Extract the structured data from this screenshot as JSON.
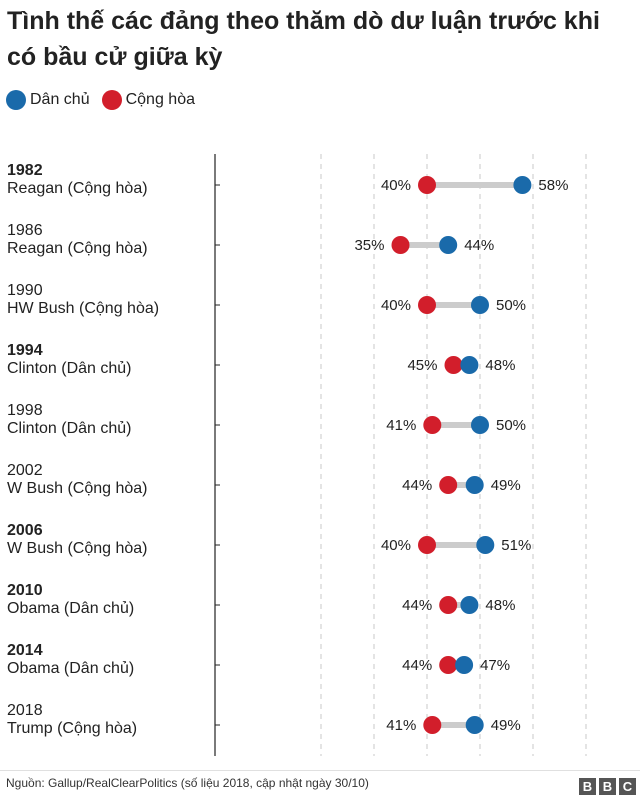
{
  "title": "Tình thế các đảng theo thăm dò dư luận trước khi có bầu cử giữa kỳ",
  "legend": [
    {
      "label": "Dân chủ",
      "color": "#1a6aaa"
    },
    {
      "label": "Cộng hòa",
      "color": "#d21e2b"
    }
  ],
  "colors": {
    "dem": "#1a6aaa",
    "rep": "#d21e2b",
    "connector": "#cccccc",
    "grid": "#c8c8c8",
    "axis": "#222222"
  },
  "chart_data": {
    "type": "dot",
    "xlim": [
      0,
      100
    ],
    "grid": true,
    "legend_position": "top-left",
    "rows": [
      {
        "year": "1982",
        "president": "Reagan (Cộng hòa)",
        "bold": true,
        "rep": 40,
        "dem": 58,
        "rep_label": "40%",
        "dem_label": "58%"
      },
      {
        "year": "1986",
        "president": "Reagan (Cộng hòa)",
        "bold": false,
        "rep": 35,
        "dem": 44,
        "rep_label": "35%",
        "dem_label": "44%"
      },
      {
        "year": "1990",
        "president": "HW Bush (Cộng hòa)",
        "bold": false,
        "rep": 40,
        "dem": 50,
        "rep_label": "40%",
        "dem_label": "50%"
      },
      {
        "year": "1994",
        "president": "Clinton (Dân chủ)",
        "bold": true,
        "rep": 45,
        "dem": 48,
        "rep_label": "45%",
        "dem_label": "48%"
      },
      {
        "year": "1998",
        "president": "Clinton (Dân chủ)",
        "bold": false,
        "rep": 41,
        "dem": 50,
        "rep_label": "41%",
        "dem_label": "50%"
      },
      {
        "year": "2002",
        "president": "W Bush (Cộng hòa)",
        "bold": false,
        "rep": 44,
        "dem": 49,
        "rep_label": "44%",
        "dem_label": "49%"
      },
      {
        "year": "2006",
        "president": "W Bush (Cộng hòa)",
        "bold": true,
        "rep": 40,
        "dem": 51,
        "rep_label": "40%",
        "dem_label": "51%"
      },
      {
        "year": "2010",
        "president": "Obama (Dân chủ)",
        "bold": true,
        "rep": 44,
        "dem": 48,
        "rep_label": "44%",
        "dem_label": "48%"
      },
      {
        "year": "2014",
        "president": "Obama (Dân chủ)",
        "bold": true,
        "rep": 44,
        "dem": 47,
        "rep_label": "44%",
        "dem_label": "47%"
      },
      {
        "year": "2018",
        "president": "Trump (Cộng hòa)",
        "bold": false,
        "rep": 41,
        "dem": 49,
        "rep_label": "41%",
        "dem_label": "49%"
      }
    ]
  },
  "footer": {
    "source": "Nguồn: Gallup/RealClearPolitics (số liệu 2018, cập nhật ngày 30/10)"
  },
  "logo": {
    "letters": [
      "B",
      "B",
      "C"
    ]
  }
}
